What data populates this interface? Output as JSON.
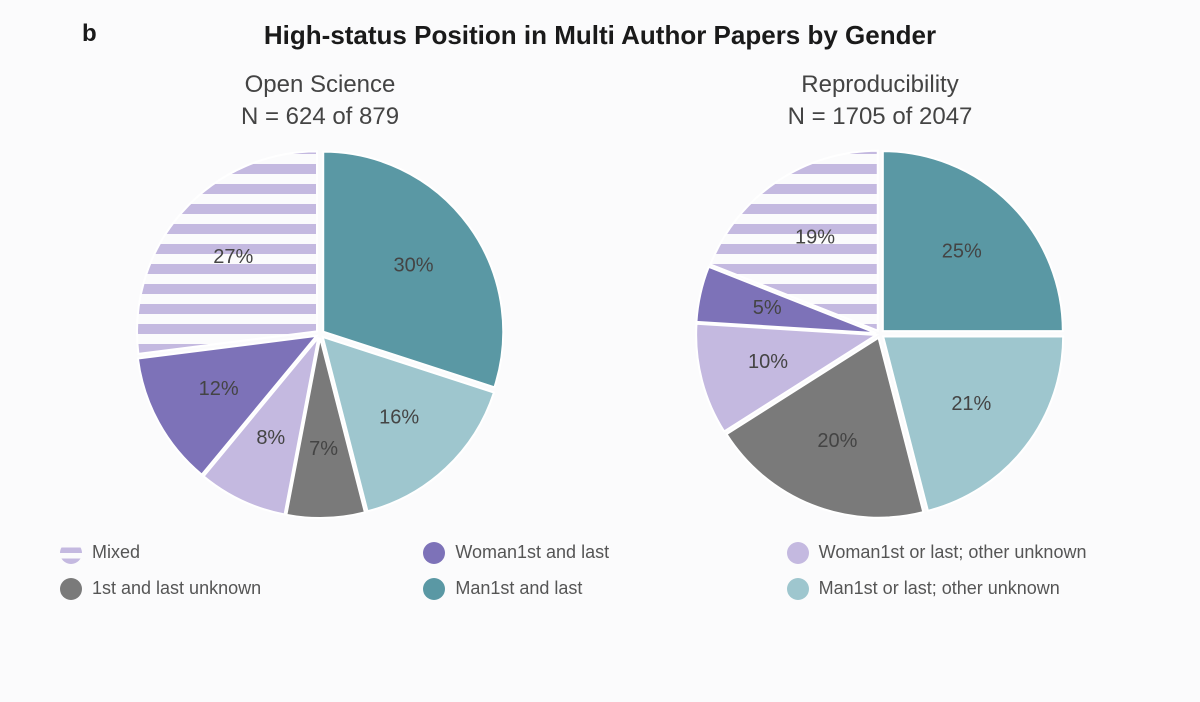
{
  "panel_letter": "b",
  "title": "High-status Position in Multi Author Papers by Gender",
  "title_fontsize": 26,
  "panel_letter_fontsize": 24,
  "subtitle_fontsize": 24,
  "label_fontsize": 20,
  "legend_fontsize": 18,
  "background_color": "#fbfbfc",
  "pie": {
    "diameter": 360,
    "explode": 4,
    "border_color": "#ffffff",
    "border_width": 2,
    "start_angle_deg": -90,
    "direction": "clockwise",
    "label_radius_factor": 0.62
  },
  "categories": [
    {
      "key": "man_first_and_last",
      "label": "Man1st and last",
      "color": "#5a98a4",
      "pattern": "solid"
    },
    {
      "key": "man_first_or_last_unknown",
      "label": "Man1st or last; other unknown",
      "color": "#9ec6ce",
      "pattern": "solid"
    },
    {
      "key": "first_and_last_unknown",
      "label": "1st and last unknown",
      "color": "#7a7a7a",
      "pattern": "solid"
    },
    {
      "key": "woman_first_or_last_unknown",
      "label": "Woman1st or last; other unknown",
      "color": "#c4b9e0",
      "pattern": "solid"
    },
    {
      "key": "woman_first_and_last",
      "label": "Woman1st and last",
      "color": "#7d72b8",
      "pattern": "solid"
    },
    {
      "key": "mixed",
      "label": "Mixed",
      "color": "#c4b9e0",
      "pattern": "striped",
      "stripe_bg": "#fbfbfc",
      "stripe_width": 10
    }
  ],
  "charts": [
    {
      "subtitle_line1": "Open Science",
      "subtitle_line2": "N = 624 of 879",
      "slices": [
        {
          "category": "man_first_and_last",
          "percent": 30,
          "label": "30%"
        },
        {
          "category": "man_first_or_last_unknown",
          "percent": 16,
          "label": "16%"
        },
        {
          "category": "first_and_last_unknown",
          "percent": 7,
          "label": "7%"
        },
        {
          "category": "woman_first_or_last_unknown",
          "percent": 8,
          "label": "8%"
        },
        {
          "category": "woman_first_and_last",
          "percent": 12,
          "label": "12%"
        },
        {
          "category": "mixed",
          "percent": 27,
          "label": "27%"
        }
      ]
    },
    {
      "subtitle_line1": "Reproducibility",
      "subtitle_line2": "N = 1705 of 2047",
      "slices": [
        {
          "category": "man_first_and_last",
          "percent": 25,
          "label": "25%"
        },
        {
          "category": "man_first_or_last_unknown",
          "percent": 21,
          "label": "21%"
        },
        {
          "category": "first_and_last_unknown",
          "percent": 20,
          "label": "20%"
        },
        {
          "category": "woman_first_or_last_unknown",
          "percent": 10,
          "label": "10%"
        },
        {
          "category": "woman_first_and_last",
          "percent": 5,
          "label": "5%"
        },
        {
          "category": "mixed",
          "percent": 19,
          "label": "19%"
        }
      ]
    }
  ],
  "legend_order": [
    "mixed",
    "woman_first_and_last",
    "woman_first_or_last_unknown",
    "first_and_last_unknown",
    "man_first_and_last",
    "man_first_or_last_unknown"
  ]
}
